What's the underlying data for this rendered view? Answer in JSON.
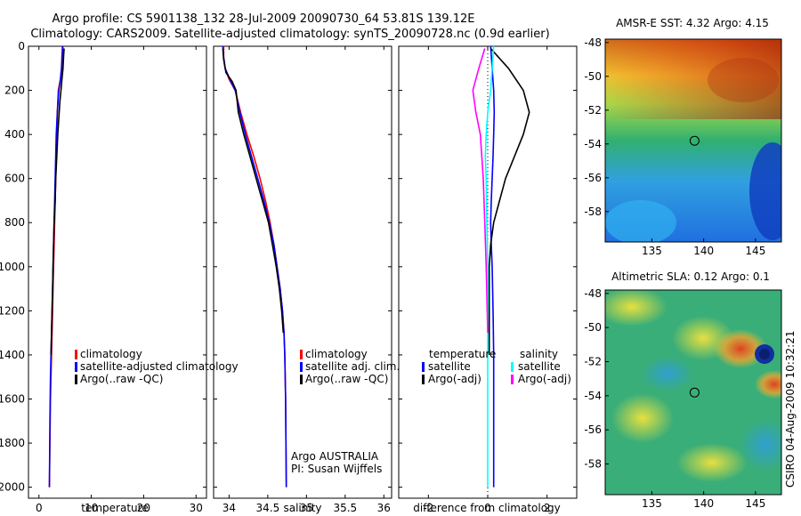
{
  "header": {
    "title_line1": "Argo profile: CS 5901138_132 28-Jul-2009 20090730_64 53.81S 139.12E",
    "title_line2": "Climatology: CARS2009. Satellite-adjusted climatology: synTS_20090728.nc (0.9d earlier)"
  },
  "side_stamp": "CSIRO 04-Aug-2009 10:32:21",
  "colors": {
    "red": "#ff0000",
    "blue": "#0000ff",
    "black": "#000000",
    "cyan": "#00ffff",
    "magenta": "#ff00ff"
  },
  "chart_data": [
    {
      "type": "line",
      "name": "temperature-panel",
      "xlabel": "temperature",
      "ylabel": "",
      "xlim": [
        -2,
        32
      ],
      "ylim": [
        2050,
        0
      ],
      "xticks": [
        0,
        10,
        20,
        30
      ],
      "yticks": [
        0,
        200,
        400,
        600,
        800,
        1000,
        1200,
        1400,
        1600,
        1800,
        2000
      ],
      "legend": [
        "climatology",
        "satellite-adjusted climatology",
        "Argo(..raw -QC)"
      ],
      "series": [
        {
          "name": "climatology",
          "color": "red",
          "x": [
            4.6,
            4.5,
            4.3,
            4.1,
            3.7,
            3.5,
            3.4,
            3.3,
            3.2,
            3.1,
            3.0,
            2.9,
            2.8,
            2.7,
            2.6,
            2.5,
            2.4,
            2.3,
            2.2,
            2.1,
            2.0
          ],
          "y": [
            0,
            50,
            100,
            150,
            200,
            300,
            400,
            500,
            600,
            700,
            800,
            900,
            1000,
            1100,
            1200,
            1300,
            1400,
            1500,
            1600,
            1800,
            2000
          ]
        },
        {
          "name": "satellite-adjusted climatology",
          "color": "blue",
          "x": [
            4.5,
            4.4,
            4.3,
            4.1,
            3.8,
            3.5,
            3.3,
            3.2,
            3.1,
            3.0,
            2.9,
            2.8,
            2.7,
            2.6,
            2.5,
            2.4,
            2.3,
            2.2,
            2.1,
            2.0
          ],
          "y": [
            0,
            50,
            100,
            150,
            200,
            300,
            400,
            500,
            600,
            700,
            800,
            900,
            1000,
            1100,
            1200,
            1300,
            1400,
            1500,
            1700,
            2000
          ]
        },
        {
          "name": "Argo(..raw -QC)",
          "color": "black",
          "x": [
            4.8,
            4.7,
            4.6,
            4.4,
            4.2,
            4.0,
            3.6,
            3.4,
            3.2,
            3.1,
            2.9,
            2.8,
            2.7,
            2.6,
            2.5,
            2.4,
            2.3
          ],
          "y": [
            10,
            50,
            100,
            150,
            200,
            250,
            400,
            500,
            600,
            700,
            800,
            900,
            1000,
            1100,
            1200,
            1300,
            1400
          ]
        }
      ]
    },
    {
      "type": "line",
      "name": "salinity-panel",
      "xlabel": "salinity",
      "ylabel": "",
      "xlim": [
        33.8,
        36.1
      ],
      "ylim": [
        2050,
        0
      ],
      "xticks": [
        34,
        34.5,
        35,
        35.5,
        36
      ],
      "xticklabels": [
        "34",
        "34.5",
        "35",
        "35.5",
        "36"
      ],
      "legend": [
        "climatology",
        "satellite adj. clim.",
        "Argo(..raw -QC)"
      ],
      "annotation": [
        "Argo AUSTRALIA",
        "PI: Susan Wijffels"
      ],
      "series": [
        {
          "name": "climatology",
          "color": "red",
          "x": [
            33.93,
            33.93,
            33.95,
            34.0,
            34.08,
            34.15,
            34.23,
            34.32,
            34.4,
            34.47,
            34.53,
            34.58,
            34.62,
            34.66,
            34.69,
            34.71,
            34.72,
            34.73,
            34.74
          ],
          "y": [
            0,
            50,
            100,
            150,
            200,
            300,
            400,
            500,
            600,
            700,
            800,
            900,
            1000,
            1100,
            1200,
            1300,
            1400,
            1600,
            2000
          ]
        },
        {
          "name": "satellite adj. clim.",
          "color": "blue",
          "x": [
            33.92,
            33.93,
            33.95,
            34.01,
            34.08,
            34.14,
            34.21,
            34.29,
            34.37,
            34.45,
            34.52,
            34.58,
            34.62,
            34.66,
            34.69,
            34.71,
            34.72,
            34.73,
            34.74
          ],
          "y": [
            0,
            50,
            100,
            150,
            200,
            300,
            400,
            500,
            600,
            700,
            800,
            900,
            1000,
            1100,
            1200,
            1300,
            1400,
            1600,
            2000
          ]
        },
        {
          "name": "Argo(..raw -QC)",
          "color": "black",
          "x": [
            33.92,
            33.93,
            33.96,
            34.04,
            34.09,
            34.12,
            34.19,
            34.27,
            34.35,
            34.43,
            34.51,
            34.56,
            34.61,
            34.65,
            34.68,
            34.7
          ],
          "y": [
            10,
            60,
            120,
            160,
            200,
            300,
            400,
            500,
            600,
            700,
            800,
            900,
            1000,
            1100,
            1200,
            1300
          ]
        }
      ]
    },
    {
      "type": "line",
      "name": "difference-panel",
      "xlabel": "difference from climatology",
      "ylabel": "",
      "xlim": [
        -3,
        3
      ],
      "ylim": [
        2050,
        0
      ],
      "xticks": [
        -2,
        0,
        2
      ],
      "legend_groups": [
        {
          "title": "temperature",
          "items": [
            "satellite",
            "Argo(-adj)"
          ]
        },
        {
          "title": "salinity",
          "items": [
            "satellite",
            "Argo(-adj)"
          ]
        }
      ],
      "series": [
        {
          "name": "temperature satellite",
          "color": "blue",
          "x": [
            0.1,
            0.15,
            0.2,
            0.22,
            0.2,
            0.18,
            0.15,
            0.12,
            0.1,
            0.12,
            0.15,
            0.18,
            0.2,
            0.2,
            0.2,
            0.2
          ],
          "y": [
            0,
            100,
            200,
            300,
            400,
            500,
            600,
            700,
            800,
            900,
            1000,
            1200,
            1400,
            1600,
            1800,
            2000
          ]
        },
        {
          "name": "temperature Argo(-adj)",
          "color": "black",
          "x": [
            0.1,
            0.7,
            1.2,
            1.4,
            1.2,
            0.9,
            0.6,
            0.4,
            0.2,
            0.1,
            0.05,
            0.05,
            0.05
          ],
          "y": [
            10,
            100,
            200,
            300,
            400,
            500,
            600,
            700,
            800,
            900,
            1000,
            1200,
            1400
          ]
        },
        {
          "name": "salinity satellite",
          "color": "cyan",
          "x": [
            0.2,
            0.15,
            0.1,
            0.0,
            -0.05,
            -0.08,
            -0.05,
            -0.03,
            0.0,
            0.0,
            0.0,
            0.0
          ],
          "y": [
            0,
            100,
            200,
            300,
            400,
            500,
            600,
            800,
            1000,
            1400,
            1800,
            2000
          ]
        },
        {
          "name": "salinity Argo(-adj)",
          "color": "magenta",
          "x": [
            -0.1,
            -0.3,
            -0.5,
            -0.4,
            -0.25,
            -0.15,
            -0.1,
            -0.05,
            0.0
          ],
          "y": [
            10,
            100,
            200,
            300,
            400,
            600,
            800,
            1000,
            1300
          ]
        }
      ]
    },
    {
      "type": "heatmap",
      "name": "sst-map",
      "title": "AMSR-E SST: 4.32 Argo: 4.15",
      "xlim": [
        130.5,
        147.5
      ],
      "ylim": [
        -59.8,
        -47.8
      ],
      "xticks": [
        135,
        140,
        145
      ],
      "yticks": [
        -48,
        -50,
        -52,
        -54,
        -56,
        -58
      ],
      "marker": {
        "lon": 139.12,
        "lat": -53.81
      }
    },
    {
      "type": "heatmap",
      "name": "sla-map",
      "title": "Altimetric SLA: 0.12 Argo: 0.1",
      "xlim": [
        130.5,
        147.5
      ],
      "ylim": [
        -59.8,
        -47.8
      ],
      "xticks": [
        135,
        140,
        145
      ],
      "yticks": [
        -48,
        -50,
        -52,
        -54,
        -56,
        -58
      ],
      "marker": {
        "lon": 139.12,
        "lat": -53.81
      }
    }
  ]
}
